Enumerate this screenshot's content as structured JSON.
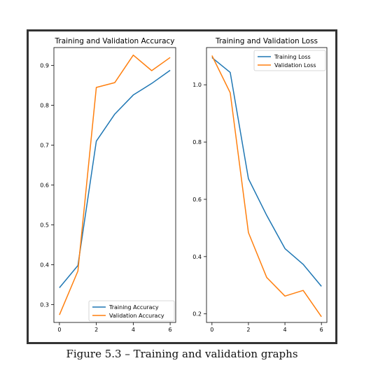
{
  "caption": "Figure 5.3 – Training and validation graphs",
  "colors": {
    "training": "#1f77b4",
    "validation": "#ff7f0e",
    "axis": "#000000",
    "frame": "#333333"
  },
  "chart_data": [
    {
      "type": "line",
      "title": "Training and Validation Accuracy",
      "xlabel": "",
      "ylabel": "",
      "x": [
        0,
        1,
        2,
        3,
        4,
        5,
        6
      ],
      "xlim": [
        -0.3,
        6.3
      ],
      "ylim": [
        0.255,
        0.945
      ],
      "xticks": [
        "0",
        "2",
        "4",
        "6"
      ],
      "yticks": [
        "0.3",
        "0.4",
        "0.5",
        "0.6",
        "0.7",
        "0.8",
        "0.9"
      ],
      "grid": false,
      "legend_position": "lower-right",
      "series": [
        {
          "name": "Training Accuracy",
          "color": "#1f77b4",
          "values": [
            0.342,
            0.398,
            0.71,
            0.778,
            0.826,
            0.855,
            0.888
          ]
        },
        {
          "name": "Validation Accuracy",
          "color": "#ff7f0e",
          "values": [
            0.274,
            0.384,
            0.845,
            0.857,
            0.926,
            0.887,
            0.92
          ]
        }
      ]
    },
    {
      "type": "line",
      "title": "Training and Validation Loss",
      "xlabel": "",
      "ylabel": "",
      "x": [
        0,
        1,
        2,
        3,
        4,
        5,
        6
      ],
      "xlim": [
        -0.3,
        6.3
      ],
      "ylim": [
        0.17,
        1.13
      ],
      "xticks": [
        "0",
        "2",
        "4",
        "6"
      ],
      "yticks": [
        "0.2",
        "0.4",
        "0.6",
        "0.8",
        "1.0"
      ],
      "grid": false,
      "legend_position": "upper-right",
      "series": [
        {
          "name": "Training Loss",
          "color": "#1f77b4",
          "values": [
            1.095,
            1.043,
            0.672,
            0.544,
            0.428,
            0.373,
            0.296
          ]
        },
        {
          "name": "Validation Loss",
          "color": "#ff7f0e",
          "values": [
            1.102,
            0.972,
            0.484,
            0.327,
            0.262,
            0.282,
            0.19
          ]
        }
      ]
    }
  ]
}
